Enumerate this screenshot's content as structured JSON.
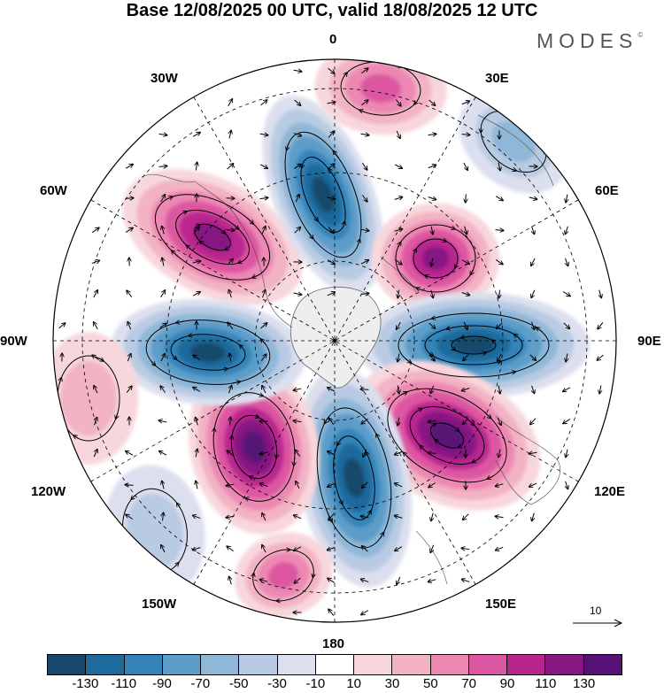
{
  "title": "Base 12/08/2025 00 UTC, valid 18/08/2025 12 UTC",
  "brand": "MODES",
  "brand_mark": "©",
  "longitude_labels": {
    "top": "0",
    "top_right": "30E",
    "right_upper": "60E",
    "right": "90E",
    "right_lower": "120E",
    "bottom_right": "150E",
    "bottom": "180",
    "bottom_left": "150W",
    "left_lower": "120W",
    "left": "90W",
    "left_upper": "60W",
    "top_left": "30W"
  },
  "reference_vector": {
    "label": "10",
    "icon": "arrow-right-icon"
  },
  "colorbar": {
    "colors": [
      "#17486b",
      "#1f6a9c",
      "#3584b9",
      "#5d9dc9",
      "#8fb7d8",
      "#b9cbe3",
      "#dcdfee",
      "#ffffff",
      "#f8d7dc",
      "#f2b3c4",
      "#ec88b2",
      "#dc57a1",
      "#b8258e",
      "#861781",
      "#561276"
    ],
    "labels": [
      "-130",
      "-110",
      "-90",
      "-70",
      "-50",
      "-30",
      "-10",
      "10",
      "30",
      "50",
      "70",
      "90",
      "110",
      "130"
    ]
  },
  "anomaly_centers": [
    {
      "name": "high-60w",
      "sign": "positive",
      "level": "110"
    },
    {
      "name": "low-0",
      "sign": "negative",
      "level": "-130"
    },
    {
      "name": "high-45e",
      "sign": "positive",
      "level": "110"
    },
    {
      "name": "low-90e",
      "sign": "negative",
      "level": "-130"
    },
    {
      "name": "high-130e",
      "sign": "positive",
      "level": "130"
    },
    {
      "name": "low-170e",
      "sign": "negative",
      "level": "-130"
    },
    {
      "name": "high-150w",
      "sign": "positive",
      "level": "130"
    },
    {
      "name": "low-100w",
      "sign": "negative",
      "level": "-130"
    },
    {
      "name": "low-20e-edge",
      "sign": "negative",
      "level": "-50"
    },
    {
      "name": "high-10-edge",
      "sign": "positive",
      "level": "70"
    },
    {
      "name": "high-170w-edge",
      "sign": "positive",
      "level": "70"
    },
    {
      "name": "high-105w-edge",
      "sign": "positive",
      "level": "30"
    },
    {
      "name": "low-140w-edge",
      "sign": "negative",
      "level": "-30"
    }
  ]
}
